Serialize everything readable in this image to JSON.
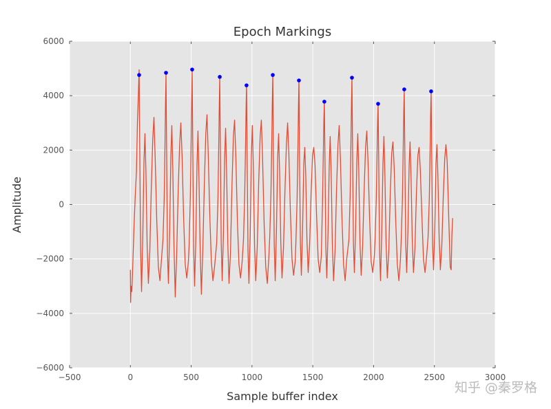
{
  "chart_data": {
    "type": "line",
    "title": "Epoch Markings",
    "xlabel": "Sample buffer index",
    "ylabel": "Amplitude",
    "annotation": "知乎 @秦罗格",
    "xlim": [
      -500,
      3000
    ],
    "ylim": [
      -6000,
      6000
    ],
    "xticks": [
      {
        "value": -500,
        "label": "−500"
      },
      0,
      500,
      1000,
      1500,
      2000,
      2500,
      3000
    ],
    "yticks": [
      {
        "value": -6000,
        "label": "−6000"
      },
      {
        "value": -4000,
        "label": "−4000"
      },
      {
        "value": -2000,
        "label": "−2000"
      },
      0,
      2000,
      4000,
      6000
    ],
    "grid": true,
    "series": [
      {
        "type": "line",
        "color": "#e24a33",
        "x": [
          0,
          2,
          6,
          12,
          20,
          30,
          40,
          50,
          58,
          64,
          72,
          77,
          84,
          92,
          102,
          112,
          120,
          128,
          138,
          148,
          160,
          172,
          184,
          194,
          204,
          217,
          230,
          243,
          256,
          268,
          278,
          285,
          289,
          293,
          298,
          305,
          313,
          323,
          333,
          341,
          349,
          359,
          369,
          381,
          393,
          405,
          415,
          425,
          438,
          451,
          464,
          477,
          483,
          493,
          500,
          504,
          508,
          513,
          520,
          528,
          538,
          548,
          556,
          564,
          574,
          584,
          596,
          608,
          620,
          630,
          640,
          653,
          666,
          679,
          692,
          710,
          720,
          727,
          731,
          735,
          740,
          747,
          755,
          765,
          775,
          783,
          791,
          801,
          811,
          823,
          835,
          847,
          857,
          867,
          880,
          893,
          906,
          919,
          930,
          940,
          947,
          951,
          955,
          960,
          967,
          975,
          985,
          995,
          1003,
          1011,
          1021,
          1031,
          1043,
          1055,
          1067,
          1077,
          1087,
          1100,
          1113,
          1126,
          1139,
          1146,
          1156,
          1163,
          1167,
          1171,
          1176,
          1183,
          1191,
          1201,
          1211,
          1219,
          1227,
          1237,
          1247,
          1259,
          1271,
          1283,
          1293,
          1303,
          1316,
          1329,
          1342,
          1355,
          1361,
          1371,
          1378,
          1382,
          1386,
          1391,
          1398,
          1406,
          1416,
          1426,
          1434,
          1442,
          1452,
          1462,
          1474,
          1486,
          1498,
          1508,
          1518,
          1531,
          1544,
          1557,
          1570,
          1580,
          1587,
          1591,
          1595,
          1600,
          1607,
          1615,
          1625,
          1635,
          1643,
          1651,
          1661,
          1671,
          1683,
          1695,
          1707,
          1717,
          1727,
          1740,
          1753,
          1766,
          1779,
          1797,
          1807,
          1814,
          1818,
          1822,
          1827,
          1834,
          1842,
          1852,
          1862,
          1870,
          1878,
          1888,
          1898,
          1910,
          1922,
          1934,
          1944,
          1954,
          1967,
          1980,
          1993,
          2006,
          2012,
          2022,
          2029,
          2033,
          2037,
          2042,
          2049,
          2057,
          2067,
          2077,
          2085,
          2093,
          2103,
          2113,
          2125,
          2137,
          2149,
          2159,
          2169,
          2182,
          2195,
          2208,
          2221,
          2227,
          2237,
          2244,
          2248,
          2252,
          2257,
          2264,
          2272,
          2282,
          2292,
          2300,
          2308,
          2318,
          2328,
          2340,
          2352,
          2364,
          2374,
          2384,
          2397,
          2410,
          2423,
          2436,
          2448,
          2458,
          2465,
          2469,
          2473,
          2478,
          2485,
          2493,
          2503,
          2513,
          2521,
          2529,
          2539,
          2549,
          2561,
          2573,
          2585,
          2595,
          2605,
          2618,
          2630,
          2638,
          2644,
          2650
        ],
        "values": [
          -2400,
          -3600,
          -3000,
          -3200,
          -2200,
          -800,
          300,
          1200,
          3000,
          3800,
          4950,
          2200,
          -1600,
          -3200,
          -1200,
          1600,
          2600,
          1200,
          -1500,
          -2900,
          -1700,
          600,
          2400,
          3200,
          1700,
          -600,
          -2300,
          -2800,
          -2000,
          -1300,
          200,
          2300,
          3700,
          4800,
          2000,
          -1800,
          -2900,
          -1000,
          1800,
          2900,
          1300,
          -1600,
          -3400,
          -1800,
          500,
          2200,
          3000,
          1800,
          -500,
          -2200,
          -2700,
          -2100,
          -1500,
          300,
          2400,
          3800,
          4950,
          2100,
          -1500,
          -3000,
          -1300,
          1500,
          2700,
          1000,
          -1700,
          -3300,
          -1600,
          700,
          2600,
          3300,
          1900,
          -400,
          -2100,
          -2800,
          -2300,
          -1400,
          200,
          2300,
          3600,
          4700,
          2000,
          -1400,
          -2800,
          -1100,
          1700,
          2800,
          1300,
          -1400,
          -2900,
          -1800,
          600,
          2500,
          3100,
          1800,
          -600,
          -2200,
          -2700,
          -2100,
          -1300,
          300,
          2200,
          3400,
          4400,
          1900,
          -1700,
          -2900,
          -1200,
          1800,
          2900,
          1400,
          -1500,
          -2800,
          -1600,
          800,
          2500,
          3100,
          1700,
          -700,
          -2300,
          -2900,
          -1900,
          -1200,
          400,
          2400,
          3700,
          4800,
          2000,
          -1500,
          -2800,
          -1000,
          1700,
          2600,
          1200,
          -1400,
          -2700,
          -1600,
          500,
          2200,
          3000,
          1900,
          -300,
          -2000,
          -2600,
          -2100,
          -1400,
          200,
          2200,
          3500,
          4600,
          1800,
          -1400,
          -2600,
          -900,
          1500,
          2100,
          1100,
          -1300,
          -2500,
          -1500,
          400,
          1800,
          2100,
          1500,
          -400,
          -2000,
          -2500,
          -1900,
          100,
          2000,
          3100,
          3800,
          1700,
          -1500,
          -2700,
          -1100,
          1400,
          2500,
          1200,
          -1500,
          -2800,
          -1700,
          500,
          2200,
          2900,
          1700,
          -500,
          -2200,
          -2800,
          -2000,
          -1300,
          300,
          2400,
          3700,
          4700,
          2000,
          -1400,
          -2500,
          -900,
          1600,
          2600,
          1300,
          -1400,
          -2600,
          -1500,
          500,
          2100,
          2700,
          1600,
          -500,
          -2100,
          -2500,
          -1900,
          -1300,
          200,
          2000,
          3000,
          3700,
          1600,
          -1700,
          -2800,
          -1000,
          1500,
          2500,
          1100,
          -1500,
          -2700,
          -1700,
          400,
          1900,
          2300,
          1400,
          -600,
          -2200,
          -2800,
          -2000,
          -1300,
          200,
          2200,
          3400,
          4200,
          1800,
          -1400,
          -2500,
          -1000,
          1400,
          2300,
          1000,
          -1300,
          -2500,
          -1600,
          400,
          1800,
          2100,
          1300,
          -400,
          -2000,
          -2500,
          -1900,
          -1200,
          200,
          2100,
          3300,
          4150,
          1800,
          -1500,
          -2400,
          -900,
          1500,
          2200,
          1000,
          -1200,
          -2400,
          -1500,
          300,
          1700,
          2200,
          1600,
          -500,
          -2300,
          -2400,
          -1100,
          -500
        ]
      },
      {
        "type": "scatter",
        "color": "#0000ff",
        "x": [
          72,
          293,
          508,
          735,
          955,
          1171,
          1386,
          1595,
          1822,
          2037,
          2252,
          2473
        ],
        "values": [
          4760,
          4840,
          4960,
          4690,
          4380,
          4760,
          4560,
          3780,
          4660,
          3700,
          4230,
          4160
        ]
      }
    ]
  }
}
